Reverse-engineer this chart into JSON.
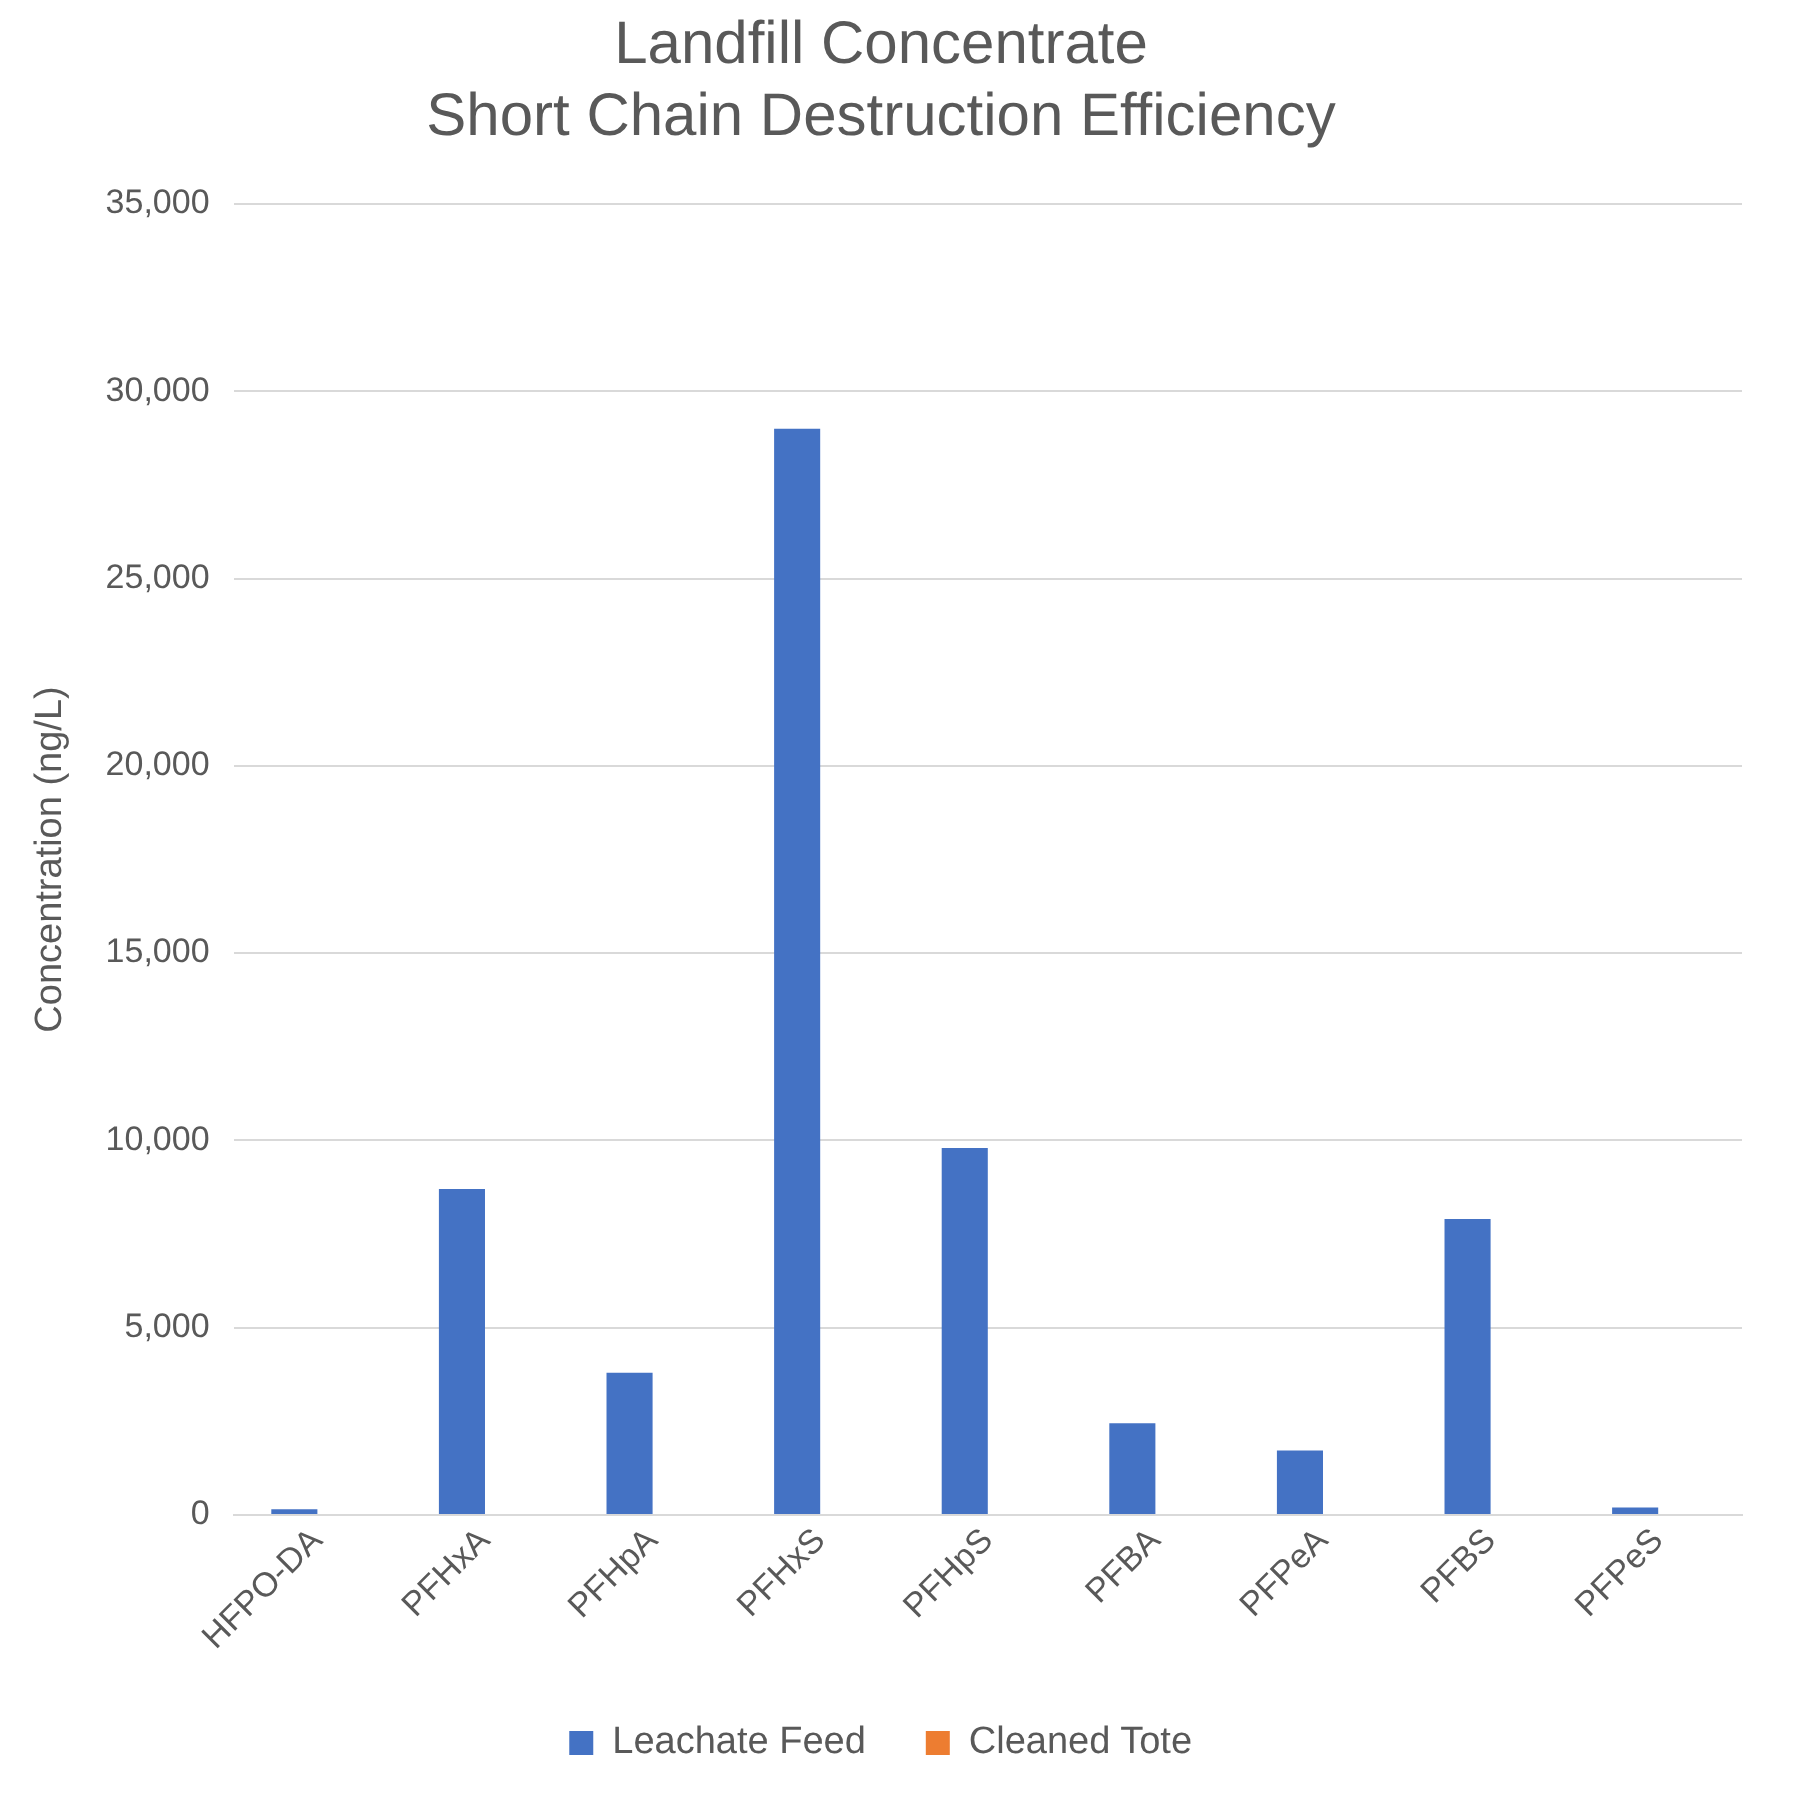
{
  "chart_data": {
    "type": "bar",
    "title": [
      "Landfill Concentrate",
      "Short Chain Destruction Efficiency"
    ],
    "ylabel": "Concentration (ng/L)",
    "categories": [
      "HFPO-DA",
      "PFHxA",
      "PFHpA",
      "PFHxS",
      "PFHpS",
      "PFBA",
      "PFPeA",
      "PFBS",
      "PFPeS"
    ],
    "series": [
      {
        "name": "Leachate Feed",
        "color": "#4472c4",
        "values": [
          150,
          8700,
          3800,
          29000,
          9800,
          2450,
          1720,
          7900,
          200
        ]
      },
      {
        "name": "Cleaned Tote",
        "color": "#ed7d31",
        "values": [
          0,
          0,
          0,
          0,
          0,
          0,
          0,
          0,
          0
        ]
      }
    ],
    "ylim": [
      0,
      35000
    ],
    "yticks": [
      0,
      {
        "value": 5000,
        "label": "5,000"
      },
      {
        "value": 10000,
        "label": "10,000"
      },
      {
        "value": 15000,
        "label": "15,000"
      },
      {
        "value": 20000,
        "label": "20,000"
      },
      {
        "value": 25000,
        "label": "25,000"
      },
      {
        "value": 30000,
        "label": "30,000"
      },
      {
        "value": 35000,
        "label": "35,000"
      }
    ],
    "grid": "y",
    "legend": "bottom"
  }
}
